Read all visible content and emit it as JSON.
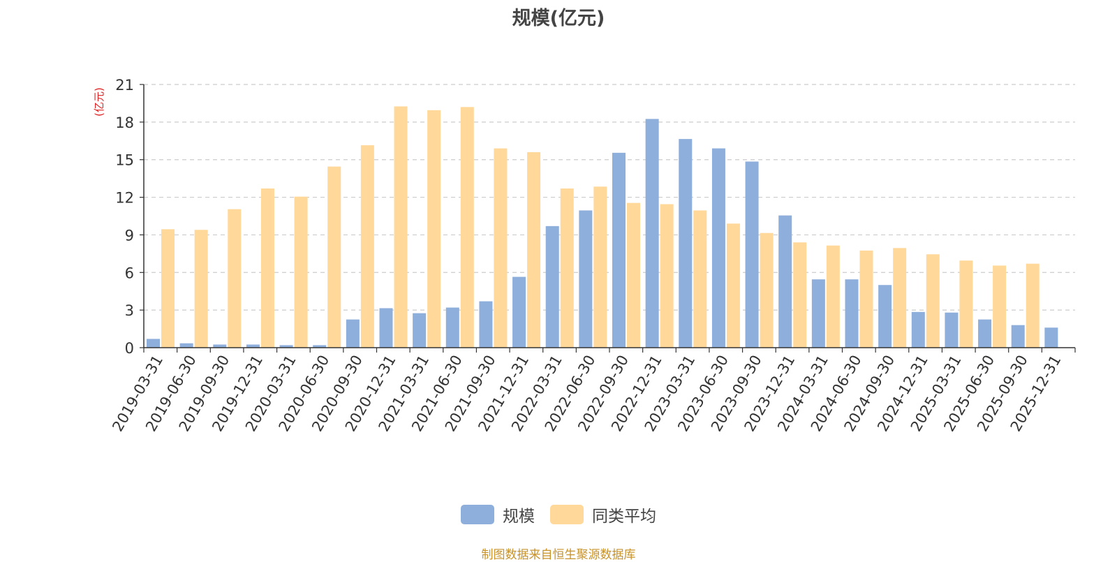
{
  "chart_data": {
    "type": "bar",
    "title": "规模(亿元)",
    "ylabel": "(亿元)",
    "xlabel": "",
    "ylim": [
      0,
      21
    ],
    "yticks": [
      0,
      3,
      6,
      9,
      12,
      15,
      18,
      21
    ],
    "grid": true,
    "legend_position": "bottom-center",
    "categories": [
      "2019-03-31",
      "2019-06-30",
      "2019-09-30",
      "2019-12-31",
      "2020-03-31",
      "2020-06-30",
      "2020-09-30",
      "2020-12-31",
      "2021-03-31",
      "2021-06-30",
      "2021-09-30",
      "2021-12-31",
      "2022-03-31",
      "2022-06-30",
      "2022-09-30",
      "2022-12-31",
      "2023-03-31",
      "2023-06-30",
      "2023-09-30",
      "2023-12-31",
      "2024-03-31",
      "2024-06-30",
      "2024-09-30",
      "2024-12-31",
      "2025-03-31",
      "2025-06-30",
      "2025-09-30",
      "2025-12-31"
    ],
    "series": [
      {
        "name": "规模",
        "color": "#8eaedb",
        "values": [
          0.7,
          0.35,
          0.25,
          0.25,
          0.2,
          0.2,
          2.25,
          3.15,
          2.75,
          3.2,
          3.7,
          5.65,
          9.7,
          10.95,
          15.55,
          18.25,
          16.65,
          15.9,
          14.85,
          10.55,
          5.45,
          5.45,
          5.0,
          2.85,
          2.8,
          2.25,
          1.8,
          1.6
        ]
      },
      {
        "name": "同类平均",
        "color": "#ffd89a",
        "values": [
          9.45,
          9.4,
          11.05,
          12.7,
          12.05,
          14.45,
          16.15,
          19.25,
          18.95,
          19.2,
          15.9,
          15.6,
          12.7,
          12.85,
          11.55,
          11.45,
          10.95,
          9.9,
          9.15,
          8.4,
          8.15,
          7.75,
          7.95,
          7.45,
          6.95,
          6.55,
          6.7,
          null
        ]
      }
    ]
  },
  "source_text": "制图数据来自恒生聚源数据库"
}
